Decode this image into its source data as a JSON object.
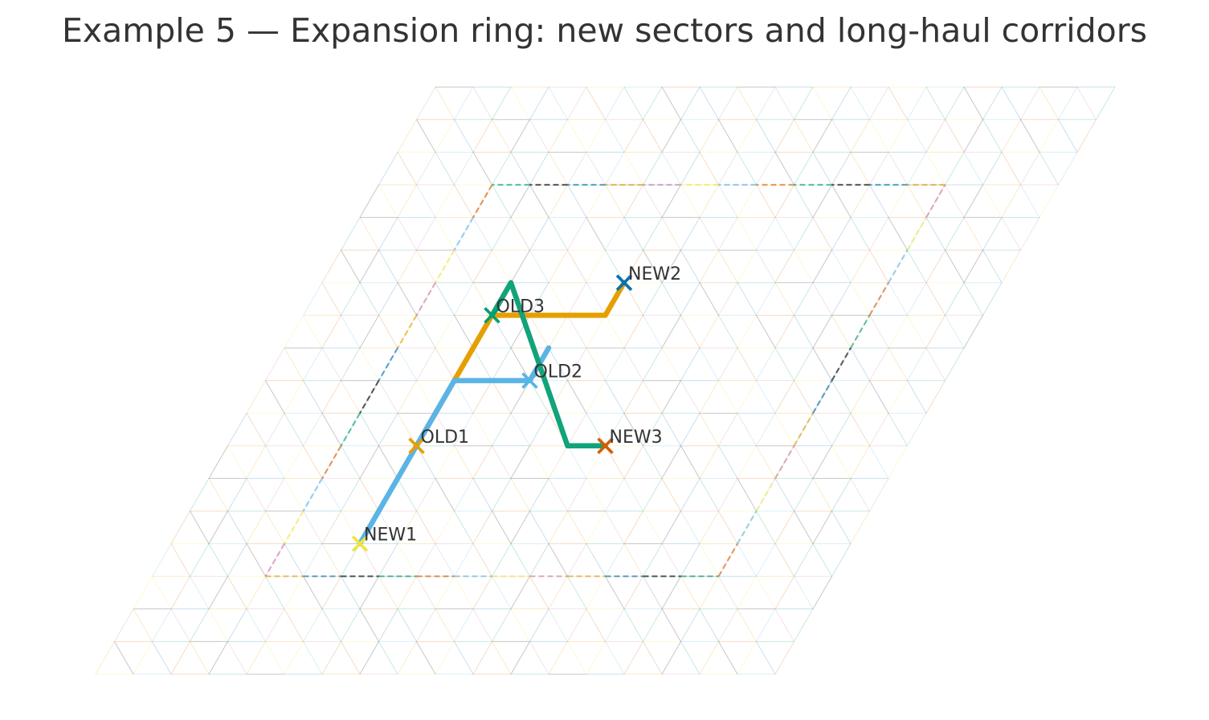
{
  "title": "Example 5 — Expansion ring: new sectors and long-haul corridors",
  "colors": {
    "grid_palette": [
      "#56b4e9",
      "#e69f00",
      "#009e73",
      "#f0e442",
      "#0072b2",
      "#d55e00",
      "#cc79a7",
      "#000000"
    ],
    "route_orange": "#e69f00",
    "route_skyblue": "#5ab4e6",
    "route_green": "#12a37a"
  },
  "nodes": [
    {
      "label": "OLD1",
      "color": "#e69f00",
      "q": 5,
      "r": 7
    },
    {
      "label": "OLD2",
      "color": "#56b4e9",
      "q": 7,
      "r": 9
    },
    {
      "label": "OLD3",
      "color": "#009e73",
      "q": 5,
      "r": 11
    },
    {
      "label": "NEW1",
      "color": "#f0e442",
      "q": 5,
      "r": 4
    },
    {
      "label": "NEW2",
      "color": "#0072b2",
      "q": 8,
      "r": 12
    },
    {
      "label": "NEW3",
      "color": "#d55e00",
      "q": 10,
      "r": 7
    }
  ],
  "routes": [
    {
      "name": "orange-route",
      "color": "#e69f00",
      "path": [
        [
          5,
          7
        ],
        [
          5,
          11
        ],
        [
          8,
          11
        ],
        [
          8,
          12
        ]
      ]
    },
    {
      "name": "skyblue-route",
      "color": "#5ab4e6",
      "path": [
        [
          5,
          4
        ],
        [
          5,
          9
        ],
        [
          7,
          9
        ],
        [
          7,
          10
        ]
      ]
    },
    {
      "name": "green-route",
      "color": "#12a37a",
      "path": [
        [
          5,
          11
        ],
        [
          5,
          12
        ],
        [
          9,
          7
        ],
        [
          10,
          7
        ]
      ]
    }
  ]
}
